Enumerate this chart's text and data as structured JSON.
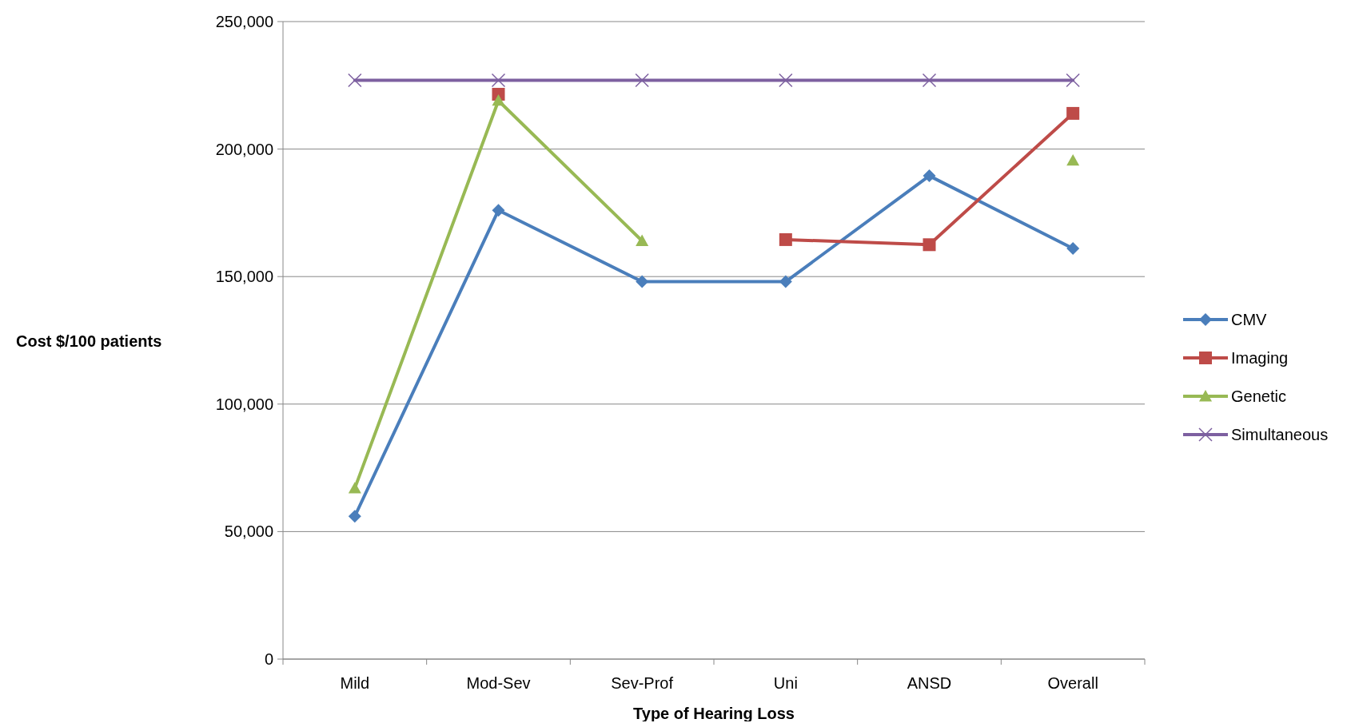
{
  "chart_data": {
    "type": "line",
    "xlabel": "Type of Hearing Loss",
    "ylabel": "Cost $/100 patients",
    "categories": [
      "Mild",
      "Mod-Sev",
      "Sev-Prof",
      "Uni",
      "ANSD",
      "Overall"
    ],
    "ylim": [
      0,
      250000
    ],
    "yticks": [
      {
        "value": 0,
        "label": "0"
      },
      {
        "value": 50000,
        "label": "50,000"
      },
      {
        "value": 100000,
        "label": "100,000"
      },
      {
        "value": 150000,
        "label": "150,000"
      },
      {
        "value": 200000,
        "label": "200,000"
      },
      {
        "value": 250000,
        "label": "250,000"
      }
    ],
    "grid": "y",
    "legend": "right",
    "series": [
      {
        "name": "CMV",
        "color": "#4a7ebb",
        "marker": "diamond",
        "values": [
          56000,
          176000,
          148000,
          148000,
          189500,
          161000
        ]
      },
      {
        "name": "Imaging",
        "color": "#be4b48",
        "marker": "square",
        "values": [
          null,
          221500,
          null,
          164500,
          162500,
          214000
        ]
      },
      {
        "name": "Genetic",
        "color": "#98b954",
        "marker": "triangle",
        "values": [
          67000,
          219000,
          164000,
          null,
          null,
          195500
        ]
      },
      {
        "name": "Simultaneous",
        "color": "#7d60a0",
        "marker": "cross",
        "values": [
          227000,
          227000,
          227000,
          227000,
          227000,
          227000
        ]
      }
    ]
  }
}
